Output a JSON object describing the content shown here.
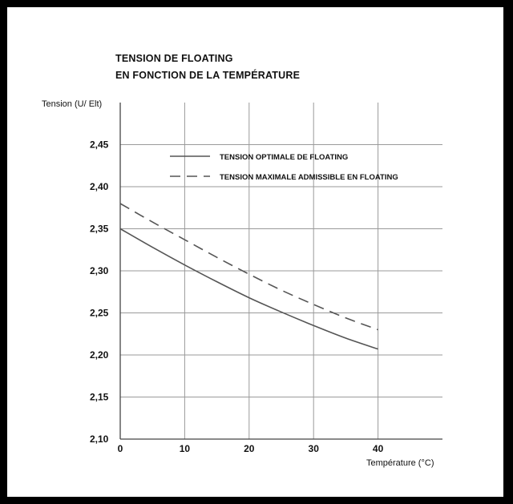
{
  "chart_data": {
    "type": "line",
    "title": "TENSION DE FLOATING",
    "subtitle": "EN FONCTION DE LA TEMPÉRATURE",
    "xlabel": "Température (°C)",
    "ylabel": "Tension (U/ Elt)",
    "xlim": [
      0,
      50
    ],
    "ylim": [
      2.1,
      2.5
    ],
    "x_ticks": [
      0,
      10,
      20,
      30,
      40
    ],
    "x_tick_labels": [
      "0",
      "10",
      "20",
      "30",
      "40"
    ],
    "y_ticks": [
      2.1,
      2.15,
      2.2,
      2.25,
      2.3,
      2.35,
      2.4,
      2.45
    ],
    "y_tick_labels": [
      "2,10",
      "2,15",
      "2,20",
      "2,25",
      "2,30",
      "2,35",
      "2,40",
      "2,45"
    ],
    "grid": true,
    "legend_position": "top-right",
    "series": [
      {
        "name": "TENSION OPTIMALE DE FLOATING",
        "style": "solid",
        "x": [
          0,
          5,
          10,
          15,
          20,
          25,
          30,
          35,
          40
        ],
        "values": [
          2.35,
          2.328,
          2.307,
          2.287,
          2.268,
          2.251,
          2.235,
          2.22,
          2.207
        ]
      },
      {
        "name": "TENSION MAXIMALE ADMISSIBLE EN FLOATING",
        "style": "dashed",
        "x": [
          0,
          5,
          10,
          15,
          20,
          25,
          30,
          35,
          40
        ],
        "values": [
          2.38,
          2.358,
          2.337,
          2.316,
          2.296,
          2.277,
          2.26,
          2.244,
          2.23
        ]
      }
    ]
  }
}
